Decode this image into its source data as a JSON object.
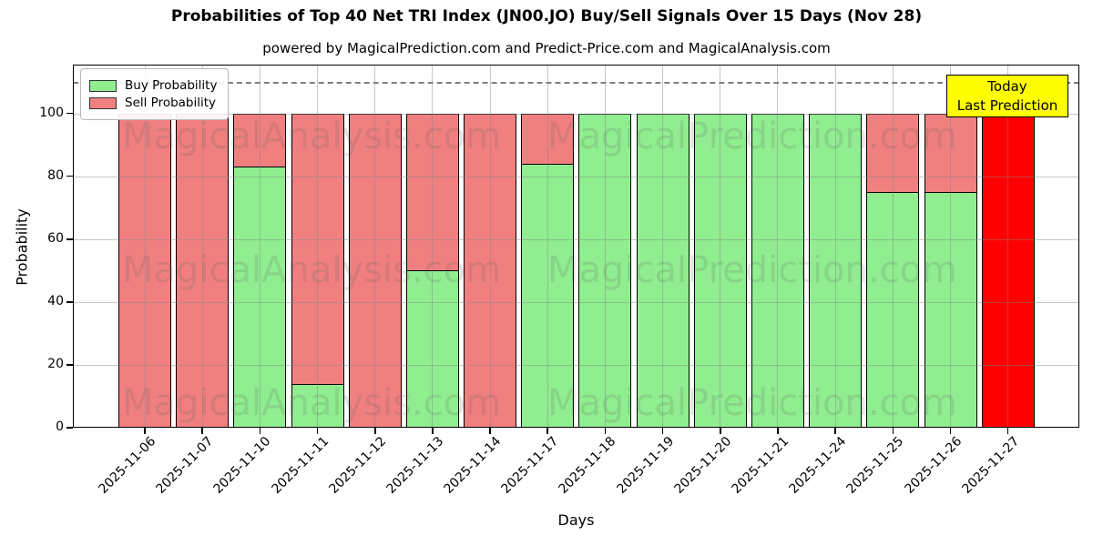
{
  "page": {
    "title": "Probabilities of Top 40 Net TRI Index (JN00.JO) Buy/Sell Signals Over 15 Days (Nov 28)",
    "subtitle": "powered by MagicalPrediction.com and Predict-Price.com and MagicalAnalysis.com"
  },
  "legend": {
    "items": [
      {
        "label": "Buy Probability",
        "color": "#90ee90"
      },
      {
        "label": "Sell Probability",
        "color": "#f08080"
      }
    ]
  },
  "today_box": {
    "line1": "Today",
    "line2": "Last Prediction",
    "bg": "#ffff00"
  },
  "watermarks": {
    "left": "MagicalAnalysis.com",
    "right": "MagicalPrediction.com"
  },
  "chart_data": {
    "type": "bar",
    "stacked": true,
    "title": "Probabilities of Top 40 Net TRI Index (JN00.JO) Buy/Sell Signals Over 15 Days (Nov 28)",
    "subtitle": "powered by MagicalPrediction.com and Predict-Price.com and MagicalAnalysis.com",
    "xlabel": "Days",
    "ylabel": "Probability",
    "categories": [
      "2025-11-06",
      "2025-11-07",
      "2025-11-10",
      "2025-11-11",
      "2025-11-12",
      "2025-11-13",
      "2025-11-14",
      "2025-11-17",
      "2025-11-18",
      "2025-11-19",
      "2025-11-20",
      "2025-11-21",
      "2025-11-24",
      "2025-11-25",
      "2025-11-26",
      "2025-11-27"
    ],
    "series": [
      {
        "name": "Buy Probability",
        "color": "#90ee90",
        "values": [
          0,
          0,
          83,
          14,
          0,
          50,
          0,
          84,
          100,
          100,
          100,
          100,
          100,
          75,
          75,
          0
        ]
      },
      {
        "name": "Sell Probability",
        "color": "#f08080",
        "values": [
          100,
          100,
          17,
          86,
          100,
          50,
          100,
          16,
          0,
          0,
          0,
          0,
          0,
          25,
          25,
          100
        ]
      }
    ],
    "today_highlight": {
      "index": 15,
      "category": "2025-11-27",
      "color": "#ff0000",
      "total": 100,
      "label": "Today Last Prediction"
    },
    "ylim": [
      0,
      115.5
    ],
    "yticks": [
      0,
      20,
      40,
      60,
      80,
      100
    ],
    "dashed_line_y": 110,
    "grid": true,
    "legend_position": "upper left"
  }
}
